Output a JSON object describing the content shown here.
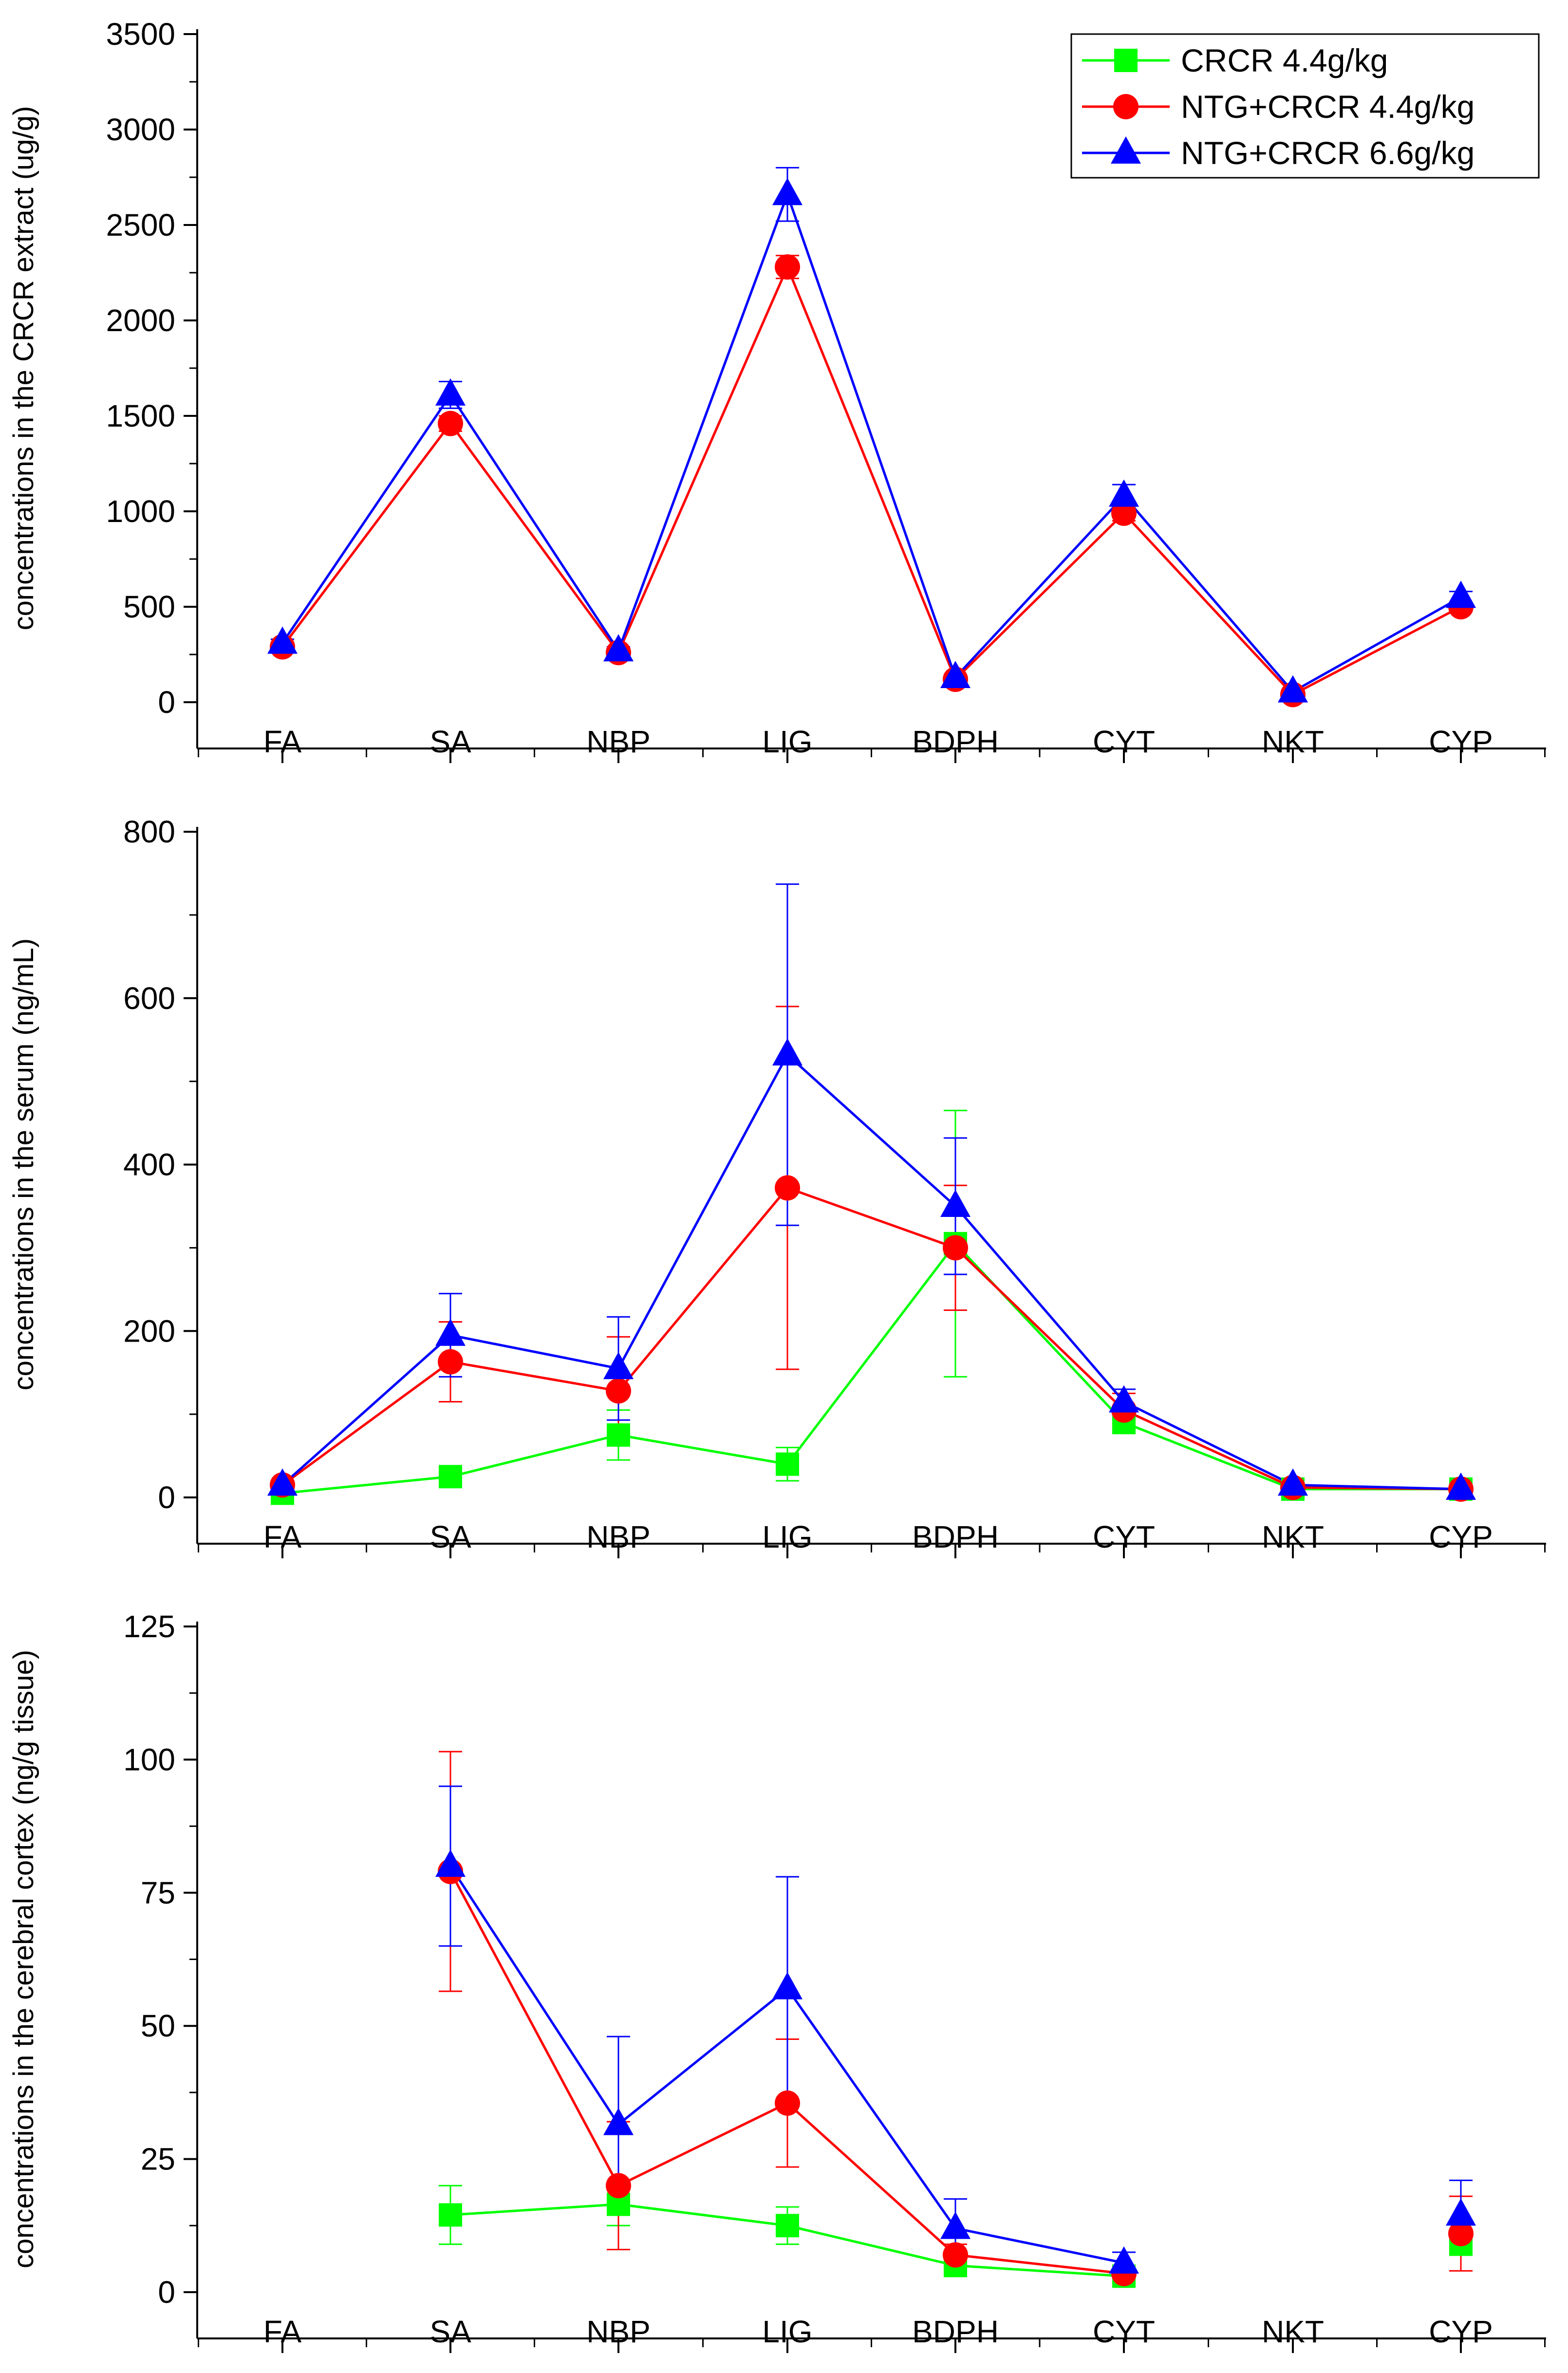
{
  "chart_data": [
    {
      "type": "line",
      "title": "",
      "xlabel": "",
      "ylabel": "concentrations in the CRCR extract (ug/g)",
      "categories": [
        "FA",
        "SA",
        "NBP",
        "LIG",
        "BDPH",
        "CYT",
        "NKT",
        "CYP"
      ],
      "ylim": [
        0,
        3500
      ],
      "yticks": [
        "0",
        "500",
        "1000",
        "1500",
        "2000",
        "2500",
        "3000",
        "3500"
      ],
      "legend": "top-right",
      "series": [
        {
          "name": "NTG+CRCR 4.4g/kg",
          "color": "#ff0000",
          "marker": "circle",
          "values": [
            290,
            1460,
            260,
            2280,
            120,
            990,
            40,
            500
          ],
          "errors": [
            20,
            40,
            20,
            60,
            10,
            40,
            5,
            25
          ]
        },
        {
          "name": "NTG+CRCR 6.6g/kg",
          "color": "#0000ff",
          "marker": "triangle",
          "values": [
            310,
            1610,
            270,
            2660,
            130,
            1080,
            55,
            550
          ],
          "errors": [
            20,
            70,
            20,
            140,
            10,
            60,
            10,
            30
          ]
        }
      ]
    },
    {
      "type": "line",
      "title": "",
      "xlabel": "",
      "ylabel": "concentrations in the serum (ng/mL)",
      "categories": [
        "FA",
        "SA",
        "NBP",
        "LIG",
        "BDPH",
        "CYT",
        "NKT",
        "CYP"
      ],
      "ylim": [
        0,
        800
      ],
      "yticks": [
        "0",
        "200",
        "400",
        "600",
        "800"
      ],
      "series": [
        {
          "name": "CRCR 4.4g/kg",
          "color": "#00ff00",
          "marker": "square",
          "values": [
            5,
            25,
            75,
            40,
            305,
            90,
            10,
            10
          ],
          "errors": [
            3,
            8,
            30,
            20,
            160,
            10,
            4,
            3
          ]
        },
        {
          "name": "NTG+CRCR 4.4g/kg",
          "color": "#ff0000",
          "marker": "circle",
          "values": [
            15,
            163,
            128,
            372,
            300,
            105,
            12,
            10
          ],
          "errors": [
            4,
            48,
            65,
            218,
            75,
            20,
            5,
            3
          ]
        },
        {
          "name": "NTG+CRCR 6.6g/kg",
          "color": "#0000ff",
          "marker": "triangle",
          "values": [
            15,
            195,
            155,
            532,
            350,
            115,
            15,
            10
          ],
          "errors": [
            4,
            50,
            62,
            205,
            82,
            15,
            5,
            3
          ]
        }
      ]
    },
    {
      "type": "line",
      "title": "",
      "xlabel": "",
      "ylabel": "concentrations in the cerebral cortex (ng/g tissue)",
      "categories": [
        "FA",
        "SA",
        "NBP",
        "LIG",
        "BDPH",
        "CYT",
        "NKT",
        "CYP"
      ],
      "ylim": [
        0,
        125
      ],
      "yticks": [
        "0",
        "25",
        "50",
        "75",
        "100",
        "125"
      ],
      "series": [
        {
          "name": "CRCR 4.4g/kg",
          "color": "#00ff00",
          "marker": "square",
          "values": [
            null,
            14.5,
            16.5,
            12.5,
            5,
            3,
            null,
            9
          ],
          "errors": [
            null,
            5.5,
            4,
            3.5,
            1,
            1,
            null,
            2
          ]
        },
        {
          "name": "NTG+CRCR 4.4g/kg",
          "color": "#ff0000",
          "marker": "circle",
          "values": [
            null,
            79,
            20,
            35.5,
            7,
            3.5,
            null,
            11
          ],
          "errors": [
            null,
            22.5,
            12,
            12,
            2,
            1.5,
            null,
            7
          ]
        },
        {
          "name": "NTG+CRCR 6.6g/kg",
          "color": "#0000ff",
          "marker": "triangle",
          "values": [
            null,
            80,
            31.5,
            57,
            12,
            5.5,
            null,
            14.5
          ],
          "errors": [
            null,
            15,
            16.5,
            21,
            5.5,
            2,
            null,
            6.5
          ]
        }
      ]
    }
  ]
}
